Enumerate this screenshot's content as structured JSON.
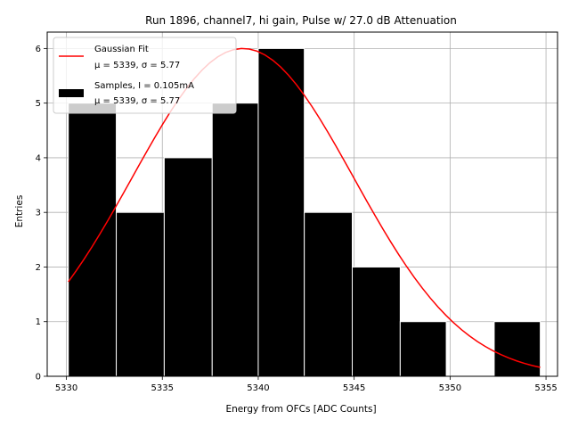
{
  "chart_data": {
    "type": "bar",
    "title": "Run 1896, channel7, hi gain, Pulse w/ 27.0 dB Attenuation",
    "xlabel": "Energy from OFCs [ADC Counts]",
    "ylabel": "Entries",
    "xlim": [
      5329,
      5355.6
    ],
    "ylim": [
      0,
      6.3
    ],
    "xticks": [
      5330,
      5335,
      5340,
      5345,
      5350,
      5355
    ],
    "yticks": [
      0,
      1,
      2,
      3,
      4,
      5,
      6
    ],
    "grid": true,
    "legend_position": "top-left",
    "histogram": {
      "name": "Samples, I = 0.105mA",
      "stats": "μ = 5339, σ = 5.77",
      "color": "#000000",
      "bin_edges": [
        5330.1,
        5332.6,
        5335.1,
        5337.6,
        5340.0,
        5342.4,
        5344.9,
        5347.4,
        5349.8,
        5352.3,
        5354.7
      ],
      "counts": [
        5,
        3,
        4,
        5,
        6,
        3,
        2,
        1,
        0,
        1
      ]
    },
    "fit": {
      "name": "Gaussian Fit",
      "stats": "μ = 5339, σ = 5.77",
      "color": "#ff0000",
      "mu": 5339.2,
      "sigma": 5.77,
      "amplitude": 6.0,
      "x_range": [
        5330.1,
        5354.7
      ]
    }
  }
}
